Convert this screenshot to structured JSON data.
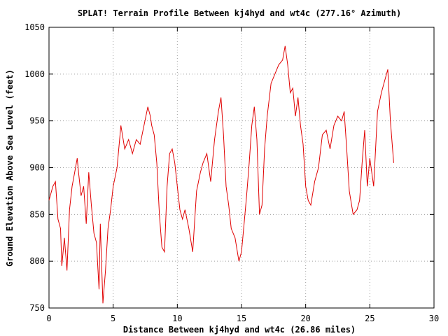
{
  "chart_data": {
    "type": "line",
    "title": "SPLAT! Terrain Profile Between kj4hyd and wt4c (277.16° Azimuth)",
    "xlabel": "Distance Between kj4hyd and wt4c (26.86 miles)",
    "ylabel": "Ground Elevation Above Sea Level (feet)",
    "xlim": [
      0,
      30
    ],
    "ylim": [
      750,
      1050
    ],
    "xticks": [
      "0",
      "5",
      "10",
      "15",
      "20",
      "25",
      "30"
    ],
    "yticks": [
      "750",
      "800",
      "850",
      "900",
      "950",
      "1000",
      "1050"
    ],
    "grid": true,
    "legend": "none",
    "line_color": "#e00000",
    "series": [
      {
        "x": [
          0.0,
          0.3,
          0.5,
          0.7,
          0.9,
          1.0,
          1.2,
          1.4,
          1.6,
          1.8,
          2.0,
          2.2,
          2.3,
          2.5,
          2.7,
          2.9,
          3.1,
          3.3,
          3.5,
          3.7,
          3.9,
          4.0,
          4.2,
          4.4,
          4.6,
          4.8,
          5.0,
          5.3,
          5.6,
          5.9,
          6.2,
          6.5,
          6.8,
          7.1,
          7.4,
          7.7,
          7.9,
          8.0,
          8.2,
          8.4,
          8.6,
          8.8,
          9.0,
          9.2,
          9.4,
          9.6,
          9.8,
          10.0,
          10.2,
          10.4,
          10.6,
          10.9,
          11.2,
          11.5,
          11.8,
          12.0,
          12.3,
          12.6,
          12.9,
          13.2,
          13.4,
          13.6,
          13.8,
          14.0,
          14.2,
          14.5,
          14.8,
          15.0,
          15.2,
          15.4,
          15.6,
          15.8,
          16.0,
          16.2,
          16.4,
          16.6,
          16.8,
          17.0,
          17.3,
          17.6,
          17.9,
          18.2,
          18.4,
          18.6,
          18.8,
          19.0,
          19.2,
          19.4,
          19.6,
          19.8,
          20.0,
          20.2,
          20.4,
          20.7,
          21.0,
          21.3,
          21.6,
          21.9,
          22.2,
          22.5,
          22.8,
          23.0,
          23.2,
          23.4,
          23.7,
          24.0,
          24.2,
          24.4,
          24.6,
          24.8,
          25.0,
          25.3,
          25.6,
          25.9,
          26.2,
          26.4,
          26.6,
          26.86
        ],
        "y": [
          865,
          880,
          885,
          845,
          835,
          795,
          825,
          790,
          855,
          880,
          895,
          910,
          895,
          870,
          880,
          840,
          895,
          860,
          830,
          820,
          770,
          840,
          755,
          790,
          835,
          855,
          880,
          900,
          945,
          920,
          930,
          915,
          930,
          925,
          945,
          965,
          955,
          945,
          935,
          905,
          850,
          815,
          810,
          880,
          915,
          920,
          905,
          880,
          855,
          845,
          855,
          835,
          810,
          875,
          895,
          905,
          915,
          885,
          930,
          960,
          975,
          935,
          880,
          860,
          835,
          825,
          800,
          810,
          840,
          870,
          905,
          945,
          965,
          930,
          850,
          860,
          920,
          955,
          990,
          1000,
          1010,
          1015,
          1030,
          1010,
          980,
          985,
          955,
          975,
          945,
          925,
          880,
          865,
          860,
          885,
          900,
          935,
          940,
          920,
          945,
          955,
          950,
          960,
          920,
          875,
          850,
          855,
          865,
          905,
          940,
          880,
          910,
          880,
          960,
          980,
          995,
          1005,
          950,
          905
        ]
      }
    ]
  }
}
